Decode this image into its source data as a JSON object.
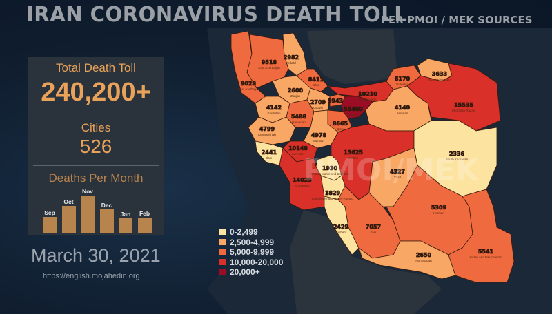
{
  "header": {
    "title": "IRAN CORONAVIRUS DEATH TOLL",
    "subtitle": "PER PMOI / MEK SOURCES"
  },
  "panel": {
    "total_label": "Total Death Toll",
    "total_value": "240,200+",
    "cities_label": "Cities",
    "cities_value": "526",
    "monthly_label": "Deaths Per Month",
    "months": [
      {
        "label": "Sep",
        "relative_value": 25
      },
      {
        "label": "Oct",
        "relative_value": 41
      },
      {
        "label": "Nov",
        "relative_value": 57
      },
      {
        "label": "Dec",
        "relative_value": 36
      },
      {
        "label": "Jan",
        "relative_value": 23
      },
      {
        "label": "Feb",
        "relative_value": 24
      }
    ]
  },
  "date": "March 30, 2021",
  "url": "https://english.mojahedin.org",
  "watermark": "PMOI/MEK",
  "legend": [
    {
      "label": "0-2,499",
      "color": "#fde3a0"
    },
    {
      "label": "2,500-4,999",
      "color": "#f8a765"
    },
    {
      "label": "5,000-9,999",
      "color": "#ef6b3f"
    },
    {
      "label": "10,000-20,000",
      "color": "#d9302a"
    },
    {
      "label": "20,000+",
      "color": "#9b0c25"
    }
  ],
  "provinces": [
    {
      "name": "West Azerbaijan",
      "value": "9028",
      "level": 2
    },
    {
      "name": "East Azerbaijan",
      "value": "9518",
      "level": 2
    },
    {
      "name": "Ardabil",
      "value": "2982",
      "level": 1
    },
    {
      "name": "Gilan",
      "value": "8411",
      "level": 2
    },
    {
      "name": "Zanjan",
      "value": "2600",
      "level": 1
    },
    {
      "name": "Qazvin",
      "value": "2709",
      "level": 1
    },
    {
      "name": "Mazandaran",
      "value": "10210",
      "level": 3
    },
    {
      "name": "Golestan",
      "value": "6170",
      "level": 2
    },
    {
      "name": "North Khorasan",
      "value": "3633",
      "level": 1
    },
    {
      "name": "Khorasan Razavi",
      "value": "15535",
      "level": 3
    },
    {
      "name": "Semnan",
      "value": "4140",
      "level": 1
    },
    {
      "name": "Alborz",
      "value": "5943",
      "level": 2
    },
    {
      "name": "Tehran",
      "value": "55460",
      "level": 4
    },
    {
      "name": "Kurdistan",
      "value": "4142",
      "level": 1
    },
    {
      "name": "Hamadan",
      "value": "5488",
      "level": 2
    },
    {
      "name": "Kermanshah",
      "value": "4799",
      "level": 1
    },
    {
      "name": "Qom",
      "value": "8665",
      "level": 2
    },
    {
      "name": "Markazi",
      "value": "4978",
      "level": 1
    },
    {
      "name": "Ilam",
      "value": "2441",
      "level": 0
    },
    {
      "name": "Lorestan",
      "value": "10148",
      "level": 3
    },
    {
      "name": "Isfahan",
      "value": "15625",
      "level": 3
    },
    {
      "name": "Chahar Mahal and Bakhtiari",
      "value": "1930",
      "level": 0
    },
    {
      "name": "Khuzestan",
      "value": "14029",
      "level": 3
    },
    {
      "name": "Kohgiluyeh and Boyer-Ahmad",
      "value": "1829",
      "level": 0
    },
    {
      "name": "Bushehr",
      "value": "2429",
      "level": 0
    },
    {
      "name": "Fars",
      "value": "7057",
      "level": 2
    },
    {
      "name": "Yazd",
      "value": "4327",
      "level": 1
    },
    {
      "name": "South Khorasan",
      "value": "2336",
      "level": 0
    },
    {
      "name": "Kerman",
      "value": "5309",
      "level": 2
    },
    {
      "name": "Hormozgan",
      "value": "2650",
      "level": 1
    },
    {
      "name": "Sistan and Baluchestan",
      "value": "5541",
      "level": 2
    }
  ]
}
